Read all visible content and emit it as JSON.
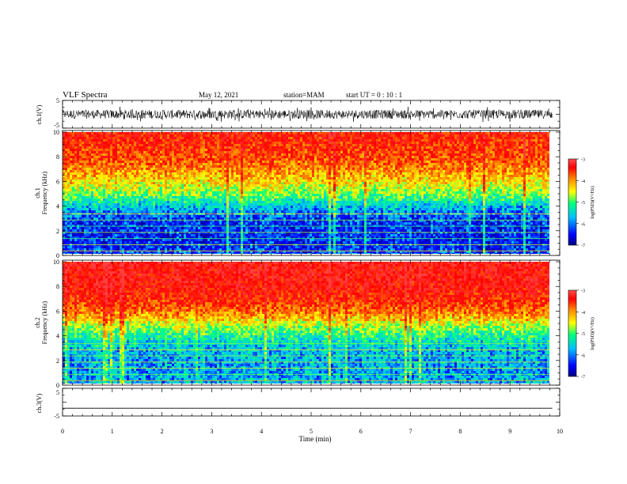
{
  "header": {
    "title": "VLF Spectra",
    "date": "May 12, 2021",
    "station": "station=MAM",
    "start_ut": "start UT =  0 : 10 : 1"
  },
  "chart_data": [
    {
      "type": "line",
      "panel": "ch1-waveform",
      "ylabel": "ch.1(V)",
      "ylim": [
        -5,
        5
      ],
      "yticks": [
        "5",
        "-5"
      ],
      "xlim": [
        0,
        10
      ],
      "grid": false,
      "description_of_signal": "dense noise between about -2 and +2 V with spikes to ±3 V"
    },
    {
      "type": "heatmap",
      "panel": "ch1-spectrogram",
      "ylabel_top": "ch.1",
      "ylabel": "Frequency (kHz)",
      "ylim": [
        0,
        10
      ],
      "yticks": [
        "0",
        "2",
        "4",
        "6",
        "8",
        "10"
      ],
      "xlim": [
        0,
        10
      ],
      "data_end_min": 9.85,
      "colorbar": {
        "label": "log(PSD)(V²/Hz)",
        "range": [
          -7,
          -3
        ],
        "ticks": [
          "-3",
          "-4",
          "-5",
          "-6",
          "-7"
        ]
      },
      "colormap": [
        "#00007f",
        "#0000ff",
        "#00bfff",
        "#00ff80",
        "#ffff00",
        "#ff8000",
        "#ff0000",
        "#ff4040"
      ],
      "profile_kHz": [
        [
          0,
          -6.2
        ],
        [
          1,
          -6.4
        ],
        [
          2,
          -6.4
        ],
        [
          3,
          -6.3
        ],
        [
          4,
          -5.8
        ],
        [
          5,
          -5.1
        ],
        [
          6,
          -4.6
        ],
        [
          7,
          -4.2
        ],
        [
          8,
          -3.9
        ],
        [
          10,
          -3.6
        ]
      ]
    },
    {
      "type": "heatmap",
      "panel": "ch2-spectrogram",
      "ylabel_top": "ch.2",
      "ylabel": "Frequency (kHz)",
      "ylim": [
        0,
        10
      ],
      "yticks": [
        "0",
        "2",
        "4",
        "6",
        "8",
        "10"
      ],
      "xlim": [
        0,
        10
      ],
      "data_end_min": 9.85,
      "colorbar": {
        "label": "log(PSD)(V²/Hz)",
        "range": [
          -7,
          -3
        ],
        "ticks": [
          "-3",
          "-4",
          "-5",
          "-6",
          "-7"
        ]
      },
      "colormap": [
        "#00007f",
        "#0000ff",
        "#00bfff",
        "#00ff80",
        "#ffff00",
        "#ff8000",
        "#ff0000",
        "#ff4040"
      ],
      "profile_kHz": [
        [
          0,
          -5.8
        ],
        [
          1,
          -5.9
        ],
        [
          2,
          -5.9
        ],
        [
          3,
          -5.8
        ],
        [
          4,
          -5.4
        ],
        [
          5,
          -4.8
        ],
        [
          6,
          -4.1
        ],
        [
          7,
          -3.7
        ],
        [
          8,
          -3.5
        ],
        [
          10,
          -3.4
        ]
      ]
    },
    {
      "type": "line",
      "panel": "ch3-waveform",
      "ylabel": "ch.3(V)",
      "ylim": [
        -5,
        5
      ],
      "yticks": [
        "5",
        "-5"
      ],
      "xlim": [
        0,
        10
      ],
      "xlabel": "Time (min)",
      "xticks": [
        "0",
        "1",
        "2",
        "3",
        "4",
        "5",
        "6",
        "7",
        "8",
        "9",
        "10"
      ],
      "series": [
        {
          "x": [
            0,
            9.85
          ],
          "y": [
            -2.2,
            -2.2
          ]
        }
      ]
    }
  ]
}
